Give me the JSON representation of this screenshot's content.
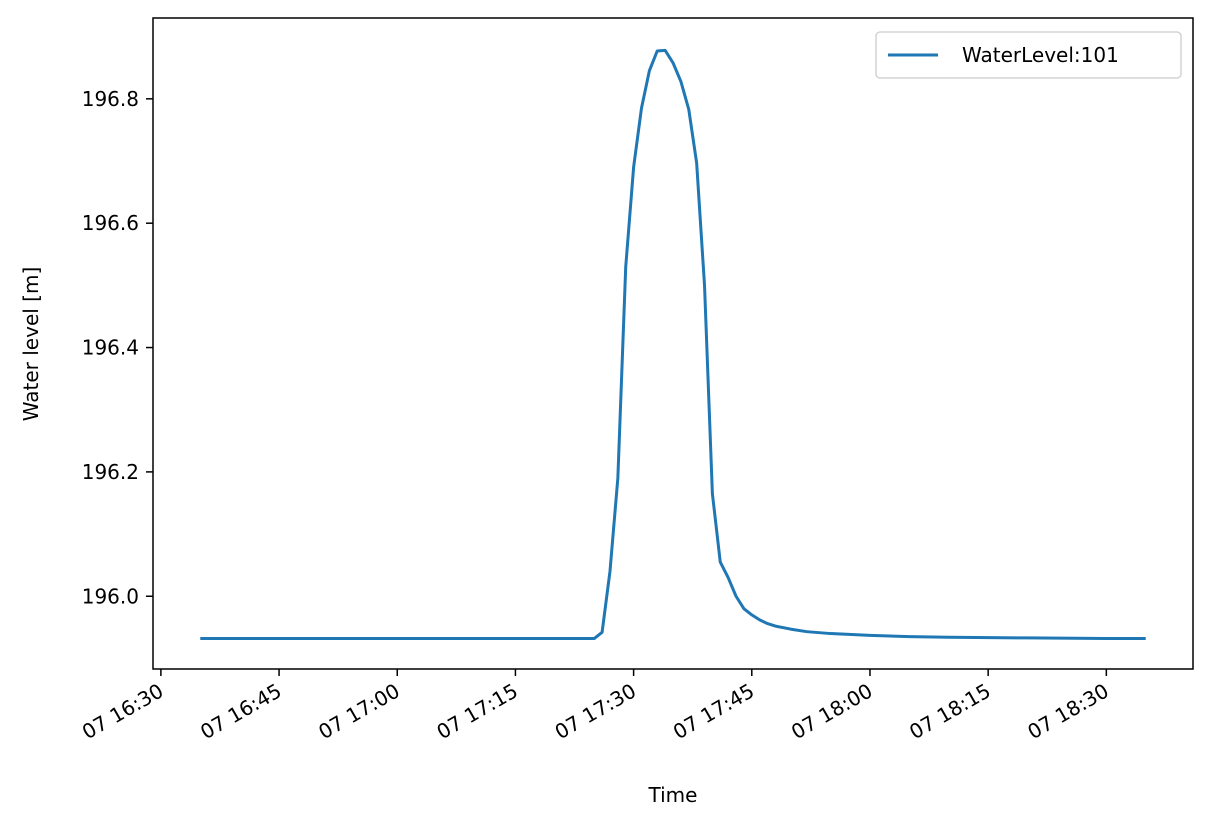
{
  "chart_data": {
    "type": "line",
    "title": "",
    "xlabel": "Time",
    "ylabel": "Water level [m]",
    "xlim": [
      "07 16:29",
      "07 18:41"
    ],
    "ylim": [
      195.883,
      196.93
    ],
    "grid": false,
    "legend": {
      "location": "top-right"
    },
    "colors": {
      "series": "#1f77b4",
      "axes": "#000000"
    },
    "x_ticks": [
      {
        "value": "07 16:30",
        "label": "07 16:30"
      },
      {
        "value": "07 16:45",
        "label": "07 16:45"
      },
      {
        "value": "07 17:00",
        "label": "07 17:00"
      },
      {
        "value": "07 17:15",
        "label": "07 17:15"
      },
      {
        "value": "07 17:30",
        "label": "07 17:30"
      },
      {
        "value": "07 17:45",
        "label": "07 17:45"
      },
      {
        "value": "07 18:00",
        "label": "07 18:00"
      },
      {
        "value": "07 18:15",
        "label": "07 18:15"
      },
      {
        "value": "07 18:30",
        "label": "07 18:30"
      }
    ],
    "y_ticks": [
      {
        "value": 196.0,
        "label": "196.0"
      },
      {
        "value": 196.2,
        "label": "196.2"
      },
      {
        "value": 196.4,
        "label": "196.4"
      },
      {
        "value": 196.6,
        "label": "196.6"
      },
      {
        "value": 196.8,
        "label": "196.8"
      }
    ],
    "series": [
      {
        "name": "WaterLevel:101",
        "x": [
          "07 16:35",
          "07 17:25",
          "07 17:26",
          "07 17:27",
          "07 17:28",
          "07 17:29",
          "07 17:30",
          "07 17:31",
          "07 17:32",
          "07 17:33",
          "07 17:34",
          "07 17:35",
          "07 17:36",
          "07 17:37",
          "07 17:38",
          "07 17:39",
          "07 17:40",
          "07 17:41",
          "07 17:42",
          "07 17:43",
          "07 17:44",
          "07 17:45",
          "07 17:46",
          "07 17:47",
          "07 17:48",
          "07 17:50",
          "07 17:52",
          "07 17:55",
          "07 18:00",
          "07 18:05",
          "07 18:10",
          "07 18:20",
          "07 18:30",
          "07 18:35"
        ],
        "y": [
          195.932,
          195.932,
          195.942,
          196.04,
          196.19,
          196.53,
          196.69,
          196.785,
          196.845,
          196.877,
          196.878,
          196.858,
          196.828,
          196.783,
          196.697,
          196.5,
          196.165,
          196.055,
          196.03,
          196.0,
          195.98,
          195.97,
          195.962,
          195.956,
          195.952,
          195.947,
          195.943,
          195.94,
          195.937,
          195.935,
          195.934,
          195.933,
          195.932,
          195.932
        ]
      }
    ]
  }
}
